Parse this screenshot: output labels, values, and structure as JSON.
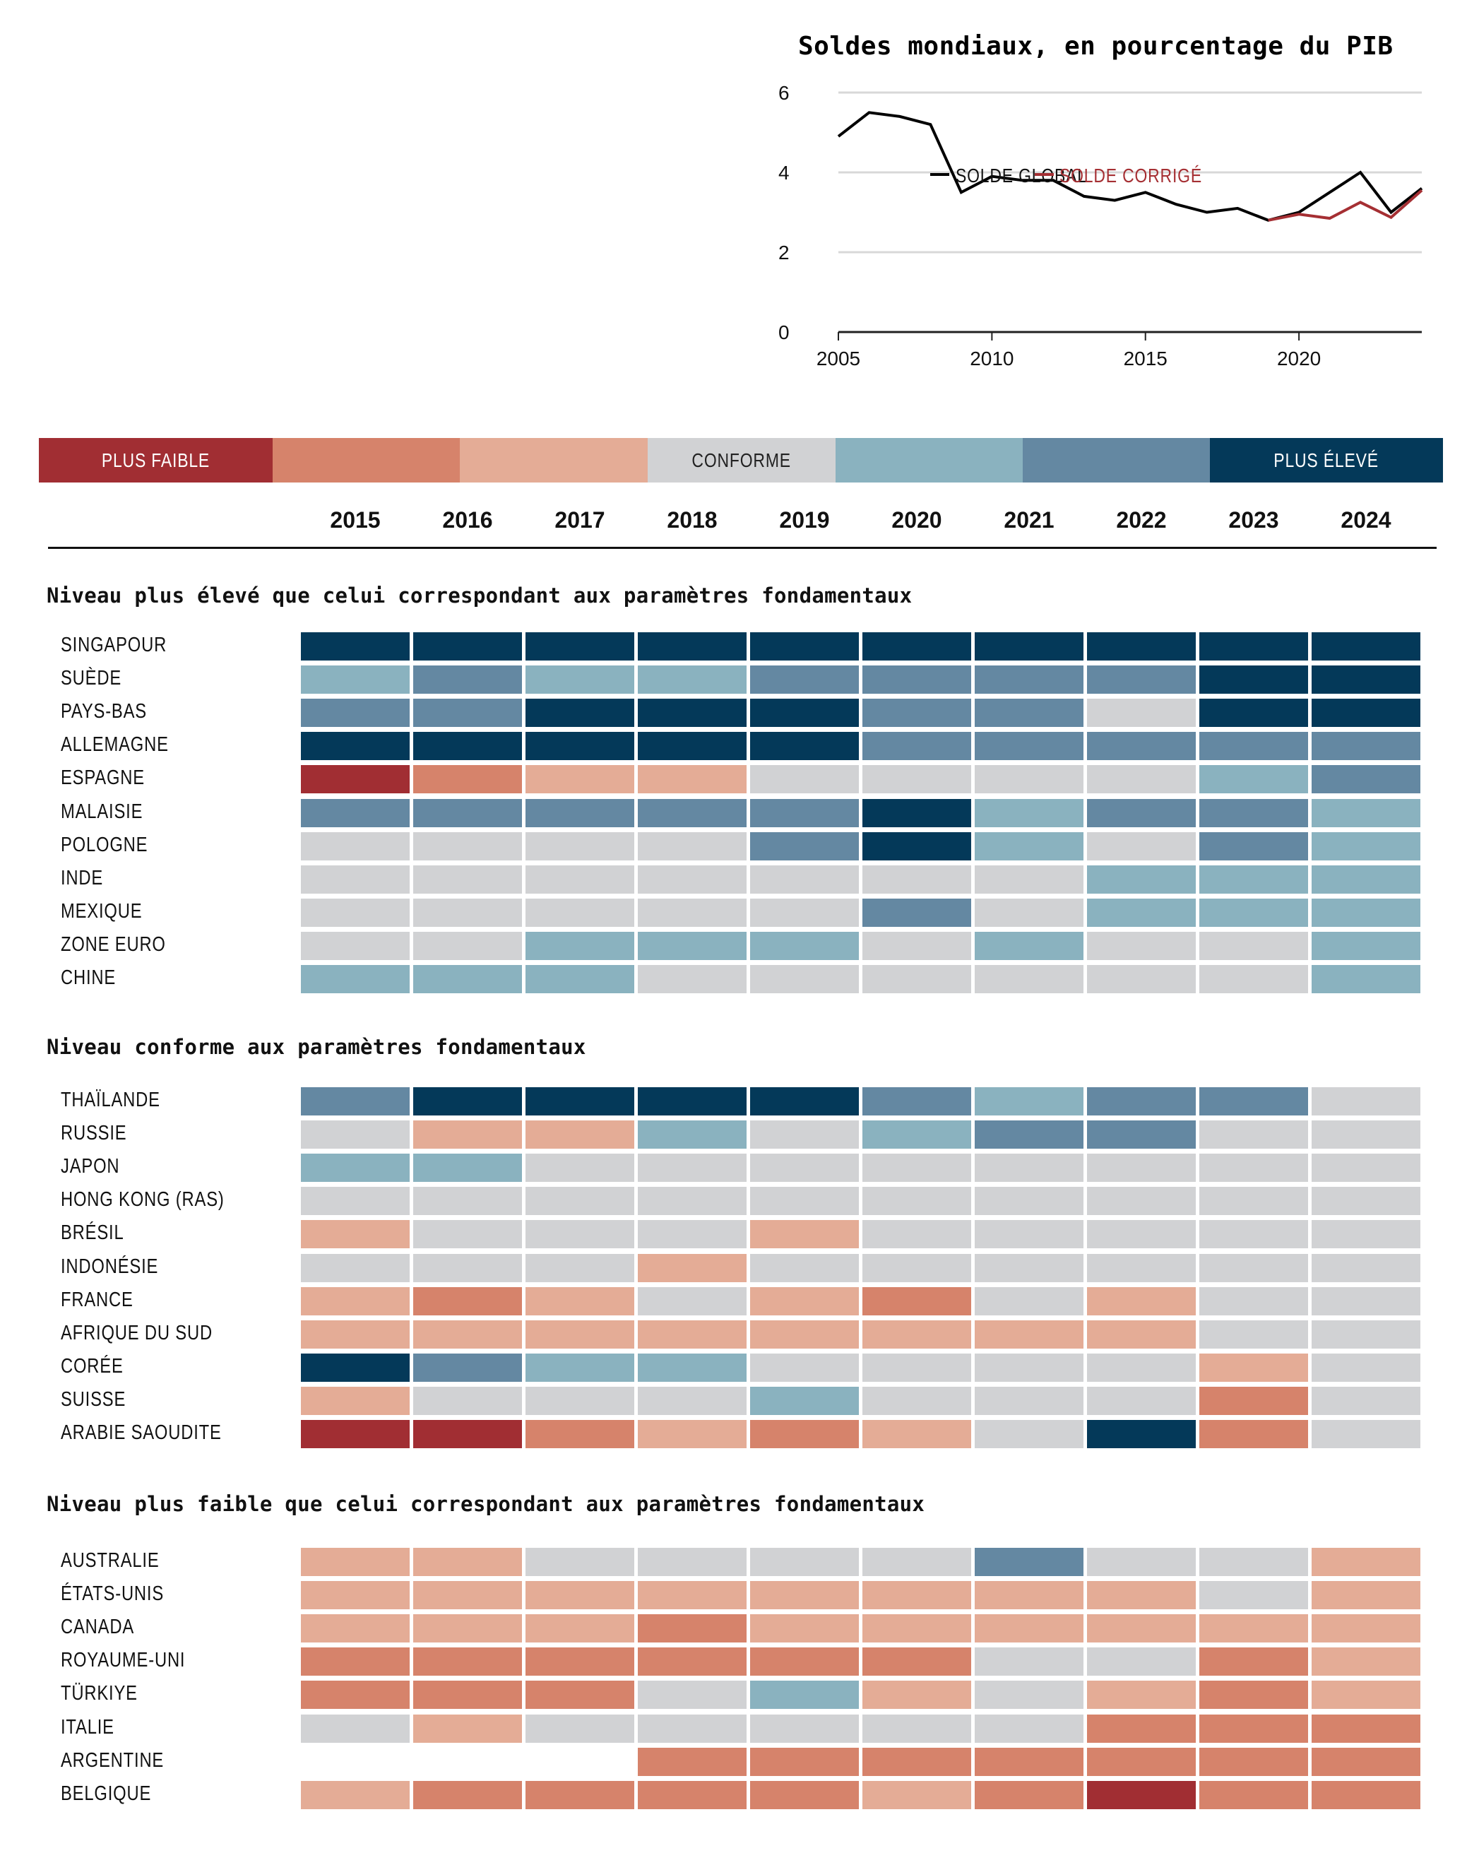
{
  "chart_data": [
    {
      "type": "line",
      "title": "Soldes mondiaux, en pourcentage du PIB",
      "xlabel": "",
      "ylabel": "",
      "xlim": [
        2005,
        2024
      ],
      "ylim": [
        0,
        6
      ],
      "x_ticks": [
        "2005",
        "2010",
        "2015",
        "2020"
      ],
      "y_ticks": [
        "0",
        "2",
        "4",
        "6"
      ],
      "grid": true,
      "legend_position": "bottom-center",
      "series": [
        {
          "name": "SOLDE GLOBAL",
          "color": "#000000",
          "x": [
            2005,
            2006,
            2007,
            2008,
            2009,
            2010,
            2011,
            2012,
            2013,
            2014,
            2015,
            2016,
            2017,
            2018,
            2019,
            2020,
            2021,
            2022,
            2023,
            2024
          ],
          "values": [
            4.9,
            5.5,
            5.4,
            5.2,
            3.5,
            3.9,
            3.8,
            3.8,
            3.4,
            3.3,
            3.5,
            3.2,
            3.0,
            3.1,
            2.8,
            3.0,
            3.5,
            4.0,
            3.0,
            3.6
          ]
        },
        {
          "name": "SOLDE CORRIGÉ",
          "color": "#a52f33",
          "x": [
            2019,
            2020,
            2021,
            2022,
            2023,
            2024
          ],
          "values": [
            2.8,
            2.95,
            2.85,
            3.25,
            2.87,
            3.55
          ]
        }
      ]
    },
    {
      "type": "heatmap",
      "title": "",
      "columns": [
        "2015",
        "2016",
        "2017",
        "2018",
        "2019",
        "2020",
        "2021",
        "2022",
        "2023",
        "2024"
      ],
      "scale": {
        "values": [
          -3,
          -2,
          -1,
          0,
          1,
          2,
          3
        ],
        "colors": [
          "#a12e33",
          "#d6836b",
          "#e4ac96",
          "#d1d2d4",
          "#8ab2bf",
          "#6488a2",
          "#043959"
        ],
        "labels": [
          "PLUS FAIBLE",
          "",
          "",
          "CONFORME",
          "",
          "",
          "PLUS ÉLEVÉ"
        ],
        "label_colors": [
          "#ffffff",
          "",
          "",
          "#222222",
          "",
          "",
          "#ffffff"
        ]
      },
      "groups": [
        {
          "title": "Niveau plus élevé que celui correspondant aux paramètres fondamentaux",
          "rows": [
            {
              "label": "SINGAPOUR",
              "values": [
                3,
                3,
                3,
                3,
                3,
                3,
                3,
                3,
                3,
                3
              ]
            },
            {
              "label": "SUÈDE",
              "values": [
                1,
                2,
                1,
                1,
                2,
                2,
                2,
                2,
                3,
                3
              ]
            },
            {
              "label": "PAYS-BAS",
              "values": [
                2,
                2,
                3,
                3,
                3,
                2,
                2,
                0,
                3,
                3
              ]
            },
            {
              "label": "ALLEMAGNE",
              "values": [
                3,
                3,
                3,
                3,
                3,
                2,
                2,
                2,
                2,
                2
              ]
            },
            {
              "label": "ESPAGNE",
              "values": [
                -3,
                -2,
                -1,
                -1,
                0,
                0,
                0,
                0,
                1,
                2
              ]
            },
            {
              "label": "MALAISIE",
              "values": [
                2,
                2,
                2,
                2,
                2,
                3,
                1,
                2,
                2,
                1
              ]
            },
            {
              "label": "POLOGNE",
              "values": [
                0,
                0,
                0,
                0,
                2,
                3,
                1,
                0,
                2,
                1
              ]
            },
            {
              "label": "INDE",
              "values": [
                0,
                0,
                0,
                0,
                0,
                0,
                0,
                1,
                1,
                1
              ]
            },
            {
              "label": "MEXIQUE",
              "values": [
                0,
                0,
                0,
                0,
                0,
                2,
                0,
                1,
                1,
                1
              ]
            },
            {
              "label": "ZONE EURO",
              "values": [
                0,
                0,
                1,
                1,
                1,
                0,
                1,
                0,
                0,
                1
              ]
            },
            {
              "label": "CHINE",
              "values": [
                1,
                1,
                1,
                0,
                0,
                0,
                0,
                0,
                0,
                1
              ]
            }
          ]
        },
        {
          "title": "Niveau conforme aux paramètres fondamentaux",
          "rows": [
            {
              "label": "THAÏLANDE",
              "values": [
                2,
                3,
                3,
                3,
                3,
                2,
                1,
                2,
                2,
                0
              ]
            },
            {
              "label": "RUSSIE",
              "values": [
                0,
                -1,
                -1,
                1,
                0,
                1,
                2,
                2,
                0,
                0
              ]
            },
            {
              "label": "JAPON",
              "values": [
                1,
                1,
                0,
                0,
                0,
                0,
                0,
                0,
                0,
                0
              ]
            },
            {
              "label": "HONG KONG (RAS)",
              "values": [
                0,
                0,
                0,
                0,
                0,
                0,
                0,
                0,
                0,
                0
              ]
            },
            {
              "label": "BRÉSIL",
              "values": [
                -1,
                0,
                0,
                0,
                -1,
                0,
                0,
                0,
                0,
                0
              ]
            },
            {
              "label": "INDONÉSIE",
              "values": [
                0,
                0,
                0,
                -1,
                0,
                0,
                0,
                0,
                0,
                0
              ]
            },
            {
              "label": "FRANCE",
              "values": [
                -1,
                -2,
                -1,
                0,
                -1,
                -2,
                0,
                -1,
                0,
                0
              ]
            },
            {
              "label": "AFRIQUE DU SUD",
              "values": [
                -1,
                -1,
                -1,
                -1,
                -1,
                -1,
                -1,
                -1,
                0,
                0
              ]
            },
            {
              "label": "CORÉE",
              "values": [
                3,
                2,
                1,
                1,
                0,
                0,
                0,
                0,
                -1,
                0
              ]
            },
            {
              "label": "SUISSE",
              "values": [
                -1,
                0,
                0,
                0,
                1,
                0,
                0,
                0,
                -2,
                0
              ]
            },
            {
              "label": "ARABIE SAOUDITE",
              "values": [
                -3,
                -3,
                -2,
                -1,
                -2,
                -1,
                0,
                3,
                -2,
                0
              ]
            }
          ]
        },
        {
          "title": "Niveau plus faible que celui correspondant aux paramètres fondamentaux",
          "rows": [
            {
              "label": "AUSTRALIE",
              "values": [
                -1,
                -1,
                0,
                0,
                0,
                0,
                2,
                0,
                0,
                -1
              ]
            },
            {
              "label": "ÉTATS-UNIS",
              "values": [
                -1,
                -1,
                -1,
                -1,
                -1,
                -1,
                -1,
                -1,
                0,
                -1
              ]
            },
            {
              "label": "CANADA",
              "values": [
                -1,
                -1,
                -1,
                -2,
                -1,
                -1,
                -1,
                -1,
                -1,
                -1
              ]
            },
            {
              "label": "ROYAUME-UNI",
              "values": [
                -2,
                -2,
                -2,
                -2,
                -2,
                -2,
                0,
                0,
                -2,
                -1
              ]
            },
            {
              "label": "TÜRKIYE",
              "values": [
                -2,
                -2,
                -2,
                0,
                1,
                -1,
                0,
                -1,
                -2,
                -1
              ]
            },
            {
              "label": "ITALIE",
              "values": [
                0,
                -1,
                0,
                0,
                0,
                0,
                0,
                -2,
                -2,
                -2
              ]
            },
            {
              "label": "ARGENTINE",
              "values": [
                null,
                null,
                null,
                -2,
                -2,
                -2,
                -2,
                -2,
                -2,
                -2
              ]
            },
            {
              "label": "BELGIQUE",
              "values": [
                -1,
                -2,
                -2,
                -2,
                -2,
                -1,
                -2,
                -3,
                -2,
                -2
              ]
            }
          ]
        }
      ]
    }
  ]
}
